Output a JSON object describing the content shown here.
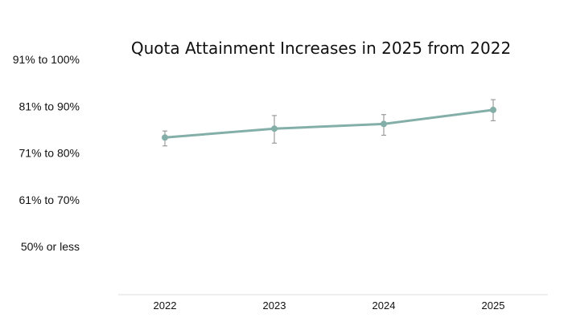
{
  "chart_data": {
    "type": "line",
    "title": "Quota Attainment Increases in 2025 from 2022",
    "xlabel": "",
    "ylabel": "",
    "categories": [
      "2022",
      "2023",
      "2024",
      "2025"
    ],
    "y_tick_labels": [
      "50% or less",
      "61% to 70%",
      "71% to 80%",
      "81% to 90%",
      "91% to 100%"
    ],
    "ylim": [
      0,
      4
    ],
    "grid": false,
    "legend": "none",
    "series": [
      {
        "values": [
          2.33,
          2.52,
          2.62,
          2.92
        ],
        "error_low": [
          2.15,
          2.21,
          2.38,
          2.69
        ],
        "error_high": [
          2.47,
          2.8,
          2.82,
          3.14
        ],
        "color": "#84afa9"
      }
    ]
  }
}
